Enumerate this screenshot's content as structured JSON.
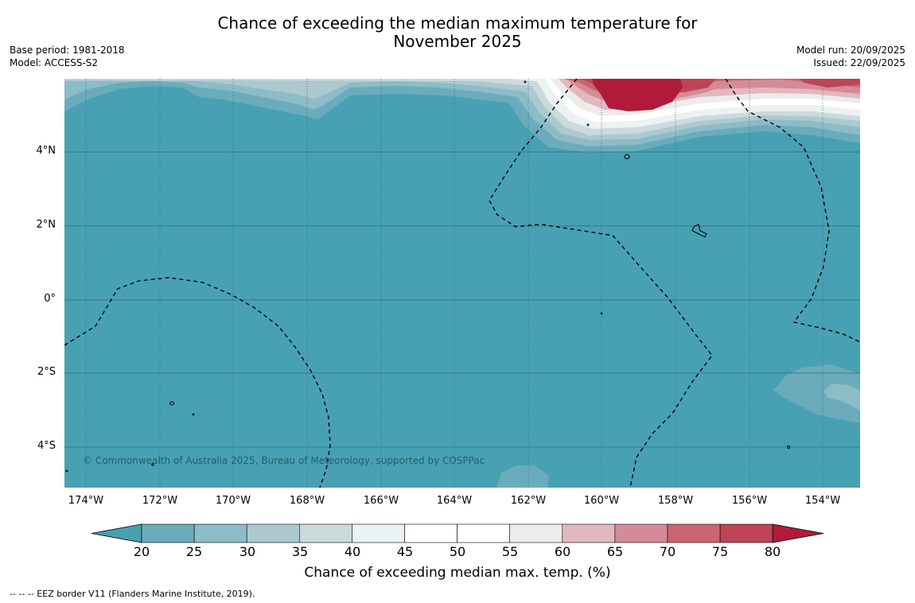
{
  "title_line1": "Chance of exceeding the median maximum temperature for",
  "title_line2": "November 2025",
  "base_period": "Base period: 1981-2018",
  "model": "Model: ACCESS-S2",
  "model_run": "Model run: 20/09/2025",
  "issued": "Issued: 22/09/2025",
  "lat_ticks": [
    "4°N",
    "2°N",
    "0°",
    "2°S",
    "4°S"
  ],
  "lon_ticks": [
    "174°W",
    "172°W",
    "170°W",
    "168°W",
    "166°W",
    "164°W",
    "162°W",
    "160°W",
    "158°W",
    "156°W",
    "154°W"
  ],
  "copyright": "© Commonwealth of Australia 2025, Bureau of Meteorology, supported by COSPPac",
  "colorbar": {
    "labels": [
      "20",
      "25",
      "30",
      "35",
      "40",
      "45",
      "50",
      "55",
      "60",
      "65",
      "70",
      "75",
      "80"
    ],
    "colors": [
      "#48a1b2",
      "#6aacbb",
      "#8bbcc7",
      "#acc9cf",
      "#ccdadd",
      "#eaf2f3",
      "#ffffff",
      "#ffffff",
      "#ececec",
      "#e2b8bf",
      "#d58b97",
      "#c9666f",
      "#bf4456",
      "#b11b39"
    ],
    "title": "Chance of exceeding median max. temp. (%)"
  },
  "footnote": "--  --  -- EEZ border V11 (Flanders Marine Institute, 2019)."
}
